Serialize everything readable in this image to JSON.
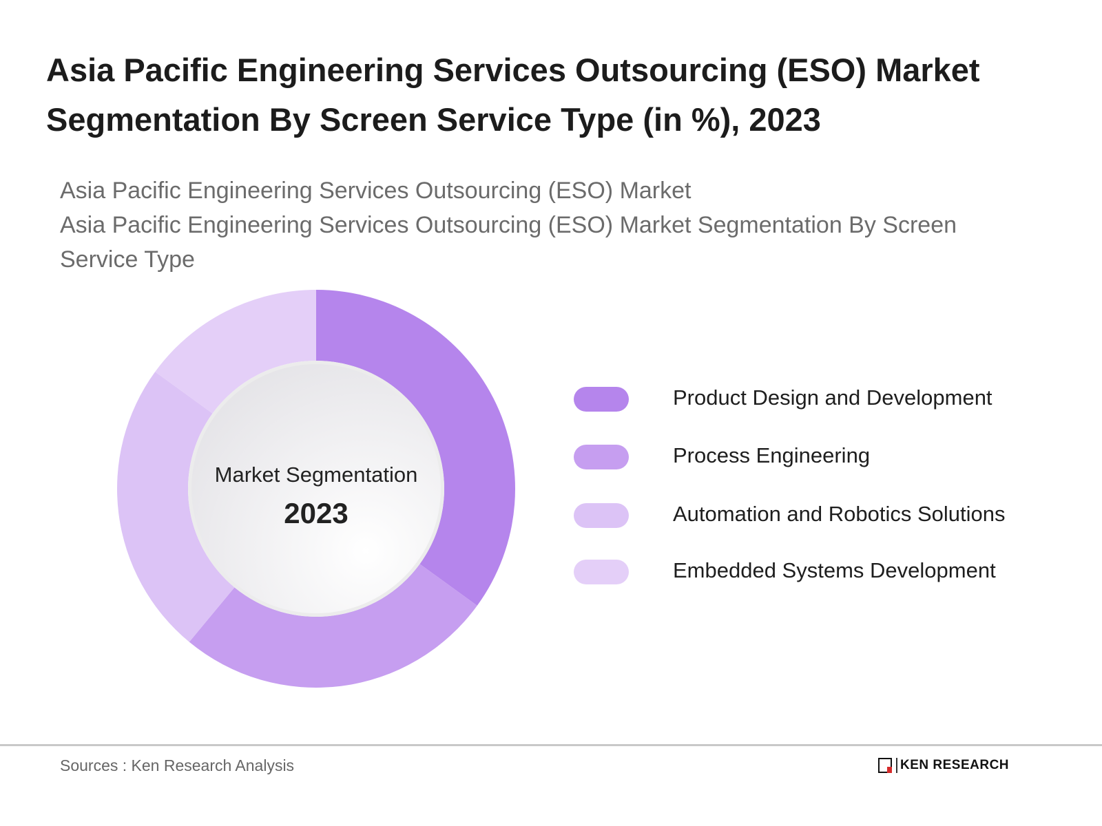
{
  "title": "Asia Pacific Engineering Services Outsourcing (ESO) Market Segmentation By Screen Service Type (in %), 2023",
  "subtitle_lines": [
    "Asia Pacific Engineering Services Outsourcing (ESO) Market",
    "Asia Pacific Engineering Services Outsourcing (ESO) Market Segmentation By Screen Service Type"
  ],
  "center": {
    "label": "Market Segmentation",
    "year": "2023"
  },
  "chart_data": {
    "type": "pie",
    "variant": "donut",
    "title": "Asia Pacific Engineering Services Outsourcing (ESO) Market Segmentation By Screen Service Type (in %), 2023",
    "categories": [
      "Product Design and Development",
      "Process Engineering",
      "Automation and Robotics Solutions",
      "Embedded Systems Development"
    ],
    "values": [
      35,
      26,
      24,
      15
    ],
    "colors": [
      "#b585ec",
      "#c69ef0",
      "#dcc3f6",
      "#e4cff8"
    ],
    "legend": "right"
  },
  "footer": {
    "source": "Sources : Ken Research Analysis",
    "logo_text": "KEN RESEARCH",
    "logo_mark": "K"
  }
}
